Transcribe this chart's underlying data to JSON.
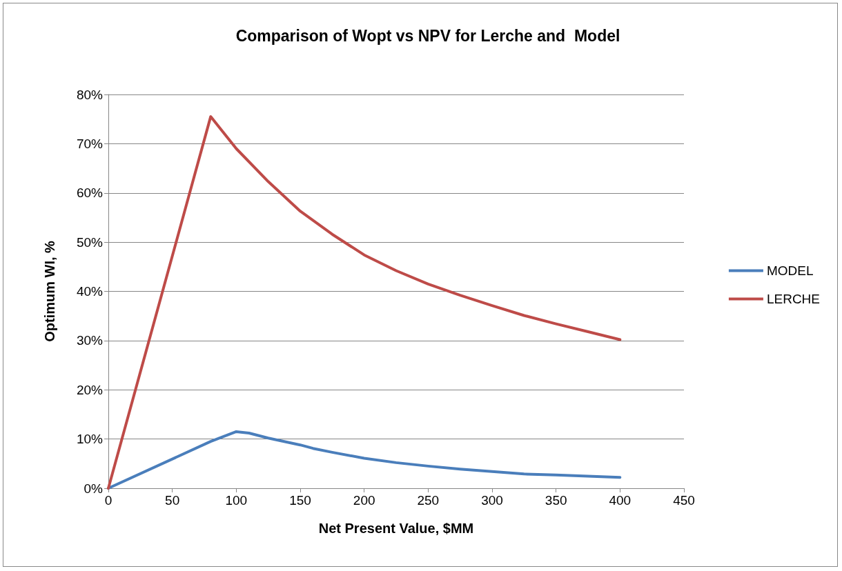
{
  "chart_data": {
    "type": "line",
    "title": "Comparison of Wopt vs NPV for Lerche and  Model",
    "xlabel": "Net Present Value, $MM",
    "ylabel": "Optimum WI, %",
    "x": [
      0,
      80,
      100,
      110,
      125,
      150,
      160,
      175,
      200,
      225,
      250,
      275,
      300,
      325,
      350,
      400
    ],
    "series": [
      {
        "name": "MODEL",
        "color": "#4a7ebb",
        "values": [
          0,
          9.5,
          11.5,
          11.2,
          10.2,
          8.8,
          8.1,
          7.3,
          6.1,
          5.2,
          4.5,
          3.9,
          3.4,
          2.9,
          2.7,
          2.2
        ]
      },
      {
        "name": "LERCHE",
        "color": "#be4b48",
        "x": [
          0,
          80,
          100,
          125,
          150,
          175,
          200,
          225,
          250,
          275,
          300,
          325,
          350,
          375,
          400
        ],
        "values": [
          0,
          75.5,
          69,
          62.3,
          56.3,
          51.6,
          47.4,
          44.2,
          41.5,
          39.2,
          37.1,
          35.1,
          33.4,
          31.8,
          30.2
        ]
      }
    ],
    "xlim": [
      0,
      450
    ],
    "xticks": [
      0,
      50,
      100,
      150,
      200,
      250,
      300,
      350,
      400,
      450
    ],
    "ylim": [
      0,
      80
    ],
    "yticks": [
      {
        "value": 0,
        "label": "0%"
      },
      {
        "value": 10,
        "label": "10%"
      },
      {
        "value": 20,
        "label": "20%"
      },
      {
        "value": 30,
        "label": "30%"
      },
      {
        "value": 40,
        "label": "40%"
      },
      {
        "value": 50,
        "label": "50%"
      },
      {
        "value": 60,
        "label": "60%"
      },
      {
        "value": 70,
        "label": "70%"
      },
      {
        "value": 80,
        "label": "80%"
      }
    ],
    "grid": "y",
    "legend": "right",
    "marker": "none",
    "line_style": "solid"
  }
}
